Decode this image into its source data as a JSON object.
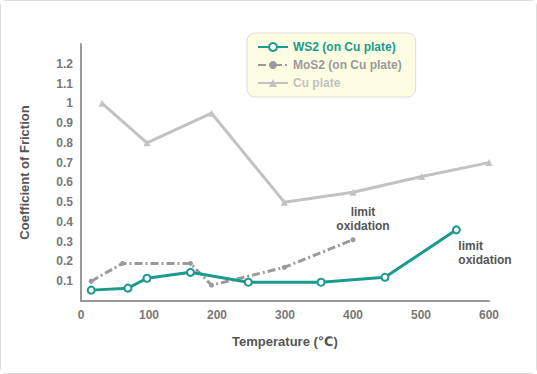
{
  "chart_data": {
    "type": "line",
    "x_label": "Temperature (℃)",
    "y_label": "Coefficient of Friction",
    "xlim": [
      0,
      600
    ],
    "xticks": [
      0,
      100,
      200,
      300,
      400,
      500,
      600
    ],
    "ylim": [
      0,
      1.3
    ],
    "yticks": [
      0.1,
      0.2,
      0.3,
      0.4,
      0.5,
      0.6,
      0.7,
      0.8,
      0.9,
      1.0,
      1.1,
      1.2
    ],
    "grid": false,
    "legend": "top",
    "series": [
      {
        "name": "WS2 (on Cu plate)",
        "color": "#1b9a8e",
        "marker": "circle",
        "line_style": "solid",
        "x": [
          15,
          69,
          97,
          161,
          246,
          353,
          447,
          552
        ],
        "values": [
          0.055,
          0.065,
          0.115,
          0.145,
          0.095,
          0.095,
          0.12,
          0.36
        ]
      },
      {
        "name": "MoS2 (on Cu plate)",
        "color": "#9a9a9a",
        "marker": "dot",
        "line_style": "dashdot",
        "x": [
          15,
          61,
          161,
          192,
          299,
          400
        ],
        "values": [
          0.1,
          0.19,
          0.19,
          0.08,
          0.17,
          0.31
        ]
      },
      {
        "name": "Cu plate",
        "color": "#c2c2c2",
        "marker": "triangle",
        "line_style": "solid",
        "x": [
          31,
          97,
          192,
          299,
          400,
          501,
          600
        ],
        "values": [
          1.0,
          0.8,
          0.95,
          0.5,
          0.55,
          0.63,
          0.7
        ]
      }
    ],
    "annotations": [
      {
        "text": "limit\noxidation",
        "x": 400,
        "y": 0.31
      },
      {
        "text": "limit\noxidation",
        "x": 552,
        "y": 0.36
      }
    ]
  }
}
